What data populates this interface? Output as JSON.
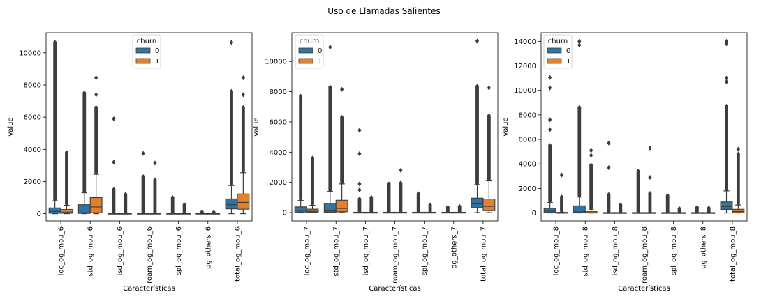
{
  "figure": {
    "title": "Uso de Llamadas Salientes",
    "legend": {
      "title": "churn",
      "labels": [
        "0",
        "1"
      ]
    },
    "colors": {
      "churn_0": "#3274a1",
      "churn_1": "#e1812c",
      "outlier": "#3d3d3d"
    }
  },
  "chart_data": [
    {
      "type": "box",
      "xlabel": "Características",
      "ylabel": "value",
      "ylim": [
        -450,
        11250
      ],
      "yticks": [
        0,
        2000,
        4000,
        6000,
        8000,
        10000
      ],
      "legend_position": "upper center",
      "categories": [
        "loc_og_mou_6",
        "std_og_mou_6",
        "isd_og_mou_6",
        "roam_og_mou_6",
        "spl_og_mou_6",
        "og_others_6",
        "total_og_mou_6"
      ],
      "series": [
        {
          "name": "0",
          "boxes": [
            {
              "lo": 0,
              "q1": 30,
              "med": 140,
              "q3": 360,
              "hi": 800,
              "omax": 10650,
              "ex": [
                6100,
                5500
              ]
            },
            {
              "lo": 0,
              "q1": 20,
              "med": 60,
              "q3": 560,
              "hi": 1300,
              "omax": 7500,
              "ex": []
            },
            {
              "lo": 0,
              "q1": 0,
              "med": 0,
              "q3": 0,
              "hi": 0,
              "omax": 1500,
              "ex": [
                5900,
                3200
              ]
            },
            {
              "lo": 0,
              "q1": 0,
              "med": 0,
              "q3": 0,
              "hi": 0,
              "omax": 2300,
              "ex": [
                3750
              ]
            },
            {
              "lo": 0,
              "q1": 0,
              "med": 0,
              "q3": 0,
              "hi": 0,
              "omax": 1000,
              "ex": []
            },
            {
              "lo": 0,
              "q1": 0,
              "med": 0,
              "q3": 0,
              "hi": 0,
              "omax": 100,
              "ex": []
            },
            {
              "lo": 0,
              "q1": 300,
              "med": 560,
              "q3": 920,
              "hi": 1750,
              "omax": 7600,
              "ex": [
                10650
              ]
            }
          ]
        },
        {
          "name": "1",
          "boxes": [
            {
              "lo": 0,
              "q1": 30,
              "med": 100,
              "q3": 260,
              "hi": 520,
              "omax": 3800,
              "ex": []
            },
            {
              "lo": 0,
              "q1": 60,
              "med": 420,
              "q3": 1000,
              "hi": 2450,
              "omax": 6600,
              "ex": [
                8450,
                7400
              ]
            },
            {
              "lo": 0,
              "q1": 0,
              "med": 0,
              "q3": 0,
              "hi": 0,
              "omax": 1200,
              "ex": []
            },
            {
              "lo": 0,
              "q1": 0,
              "med": 0,
              "q3": 0,
              "hi": 0,
              "omax": 2100,
              "ex": [
                3150
              ]
            },
            {
              "lo": 0,
              "q1": 0,
              "med": 0,
              "q3": 0,
              "hi": 0,
              "omax": 550,
              "ex": []
            },
            {
              "lo": 0,
              "q1": 0,
              "med": 0,
              "q3": 0,
              "hi": 0,
              "omax": 60,
              "ex": []
            },
            {
              "lo": 0,
              "q1": 280,
              "med": 700,
              "q3": 1230,
              "hi": 2550,
              "omax": 6600,
              "ex": [
                8450,
                7400
              ]
            }
          ]
        }
      ]
    },
    {
      "type": "box",
      "xlabel": "Características",
      "ylabel": "value",
      "ylim": [
        -550,
        11900
      ],
      "yticks": [
        0,
        2000,
        4000,
        6000,
        8000,
        10000
      ],
      "legend_position": "upper left",
      "categories": [
        "loc_og_mou_7",
        "std_og_mou_7",
        "isd_og_mou_7",
        "roam_og_mou_7",
        "spl_og_mou_7",
        "og_others_7",
        "total_og_mou_7"
      ],
      "series": [
        {
          "name": "0",
          "boxes": [
            {
              "lo": 0,
              "q1": 40,
              "med": 150,
              "q3": 380,
              "hi": 800,
              "omax": 7700,
              "ex": []
            },
            {
              "lo": 0,
              "q1": 30,
              "med": 120,
              "q3": 620,
              "hi": 1400,
              "omax": 8300,
              "ex": [
                10950
              ]
            },
            {
              "lo": 0,
              "q1": 0,
              "med": 0,
              "q3": 0,
              "hi": 0,
              "omax": 900,
              "ex": [
                5450,
                3900,
                1900,
                1500
              ]
            },
            {
              "lo": 0,
              "q1": 0,
              "med": 0,
              "q3": 0,
              "hi": 0,
              "omax": 1900,
              "ex": []
            },
            {
              "lo": 0,
              "q1": 0,
              "med": 0,
              "q3": 0,
              "hi": 0,
              "omax": 1250,
              "ex": []
            },
            {
              "lo": 0,
              "q1": 0,
              "med": 0,
              "q3": 0,
              "hi": 0,
              "omax": 350,
              "ex": []
            },
            {
              "lo": 0,
              "q1": 330,
              "med": 580,
              "q3": 960,
              "hi": 1850,
              "omax": 8350,
              "ex": [
                11350
              ]
            }
          ]
        },
        {
          "name": "1",
          "boxes": [
            {
              "lo": 0,
              "q1": 30,
              "med": 90,
              "q3": 230,
              "hi": 480,
              "omax": 3600,
              "ex": []
            },
            {
              "lo": 0,
              "q1": 60,
              "med": 280,
              "q3": 820,
              "hi": 1900,
              "omax": 6300,
              "ex": [
                8150
              ]
            },
            {
              "lo": 0,
              "q1": 0,
              "med": 0,
              "q3": 0,
              "hi": 0,
              "omax": 1000,
              "ex": []
            },
            {
              "lo": 0,
              "q1": 0,
              "med": 0,
              "q3": 0,
              "hi": 0,
              "omax": 1950,
              "ex": [
                2800
              ]
            },
            {
              "lo": 0,
              "q1": 0,
              "med": 0,
              "q3": 0,
              "hi": 0,
              "omax": 500,
              "ex": []
            },
            {
              "lo": 0,
              "q1": 0,
              "med": 0,
              "q3": 0,
              "hi": 0,
              "omax": 400,
              "ex": []
            },
            {
              "lo": 0,
              "q1": 130,
              "med": 420,
              "q3": 900,
              "hi": 2100,
              "omax": 6400,
              "ex": [
                8250
              ]
            }
          ]
        }
      ]
    },
    {
      "type": "box",
      "xlabel": "Características",
      "ylabel": "value",
      "ylim": [
        -650,
        14700
      ],
      "yticks": [
        0,
        2000,
        4000,
        6000,
        8000,
        10000,
        12000,
        14000
      ],
      "legend_position": "upper left",
      "categories": [
        "loc_og_mou_8",
        "std_og_mou_8",
        "isd_og_mou_8",
        "roam_og_mou_8",
        "spl_og_mou_8",
        "og_others_8",
        "total_og_mou_8"
      ],
      "series": [
        {
          "name": "0",
          "boxes": [
            {
              "lo": 0,
              "q1": 40,
              "med": 150,
              "q3": 380,
              "hi": 850,
              "omax": 5500,
              "ex": [
                11050,
                10200,
                7600,
                6800
              ]
            },
            {
              "lo": 0,
              "q1": 20,
              "med": 100,
              "q3": 580,
              "hi": 1300,
              "omax": 8600,
              "ex": [
                14000,
                13700
              ]
            },
            {
              "lo": 0,
              "q1": 0,
              "med": 0,
              "q3": 0,
              "hi": 0,
              "omax": 1500,
              "ex": [
                5700,
                3700
              ]
            },
            {
              "lo": 0,
              "q1": 0,
              "med": 0,
              "q3": 0,
              "hi": 0,
              "omax": 3400,
              "ex": []
            },
            {
              "lo": 0,
              "q1": 0,
              "med": 0,
              "q3": 0,
              "hi": 0,
              "omax": 1400,
              "ex": []
            },
            {
              "lo": 0,
              "q1": 0,
              "med": 0,
              "q3": 0,
              "hi": 0,
              "omax": 450,
              "ex": []
            },
            {
              "lo": 0,
              "q1": 290,
              "med": 520,
              "q3": 900,
              "hi": 1800,
              "omax": 8700,
              "ex": [
                14000,
                13800,
                11000,
                10700
              ]
            }
          ]
        },
        {
          "name": "1",
          "boxes": [
            {
              "lo": 0,
              "q1": 0,
              "med": 0,
              "q3": 30,
              "hi": 60,
              "omax": 1300,
              "ex": [
                3100
              ]
            },
            {
              "lo": 0,
              "q1": 0,
              "med": 10,
              "q3": 110,
              "hi": 260,
              "omax": 3900,
              "ex": [
                5100,
                4700
              ]
            },
            {
              "lo": 0,
              "q1": 0,
              "med": 0,
              "q3": 0,
              "hi": 0,
              "omax": 650,
              "ex": []
            },
            {
              "lo": 0,
              "q1": 0,
              "med": 0,
              "q3": 0,
              "hi": 0,
              "omax": 1600,
              "ex": [
                5300,
                2900
              ]
            },
            {
              "lo": 0,
              "q1": 0,
              "med": 0,
              "q3": 0,
              "hi": 0,
              "omax": 350,
              "ex": []
            },
            {
              "lo": 0,
              "q1": 0,
              "med": 0,
              "q3": 0,
              "hi": 0,
              "omax": 400,
              "ex": []
            },
            {
              "lo": 0,
              "q1": 30,
              "med": 120,
              "q3": 300,
              "hi": 650,
              "omax": 4800,
              "ex": [
                5200
              ]
            }
          ]
        }
      ]
    }
  ]
}
